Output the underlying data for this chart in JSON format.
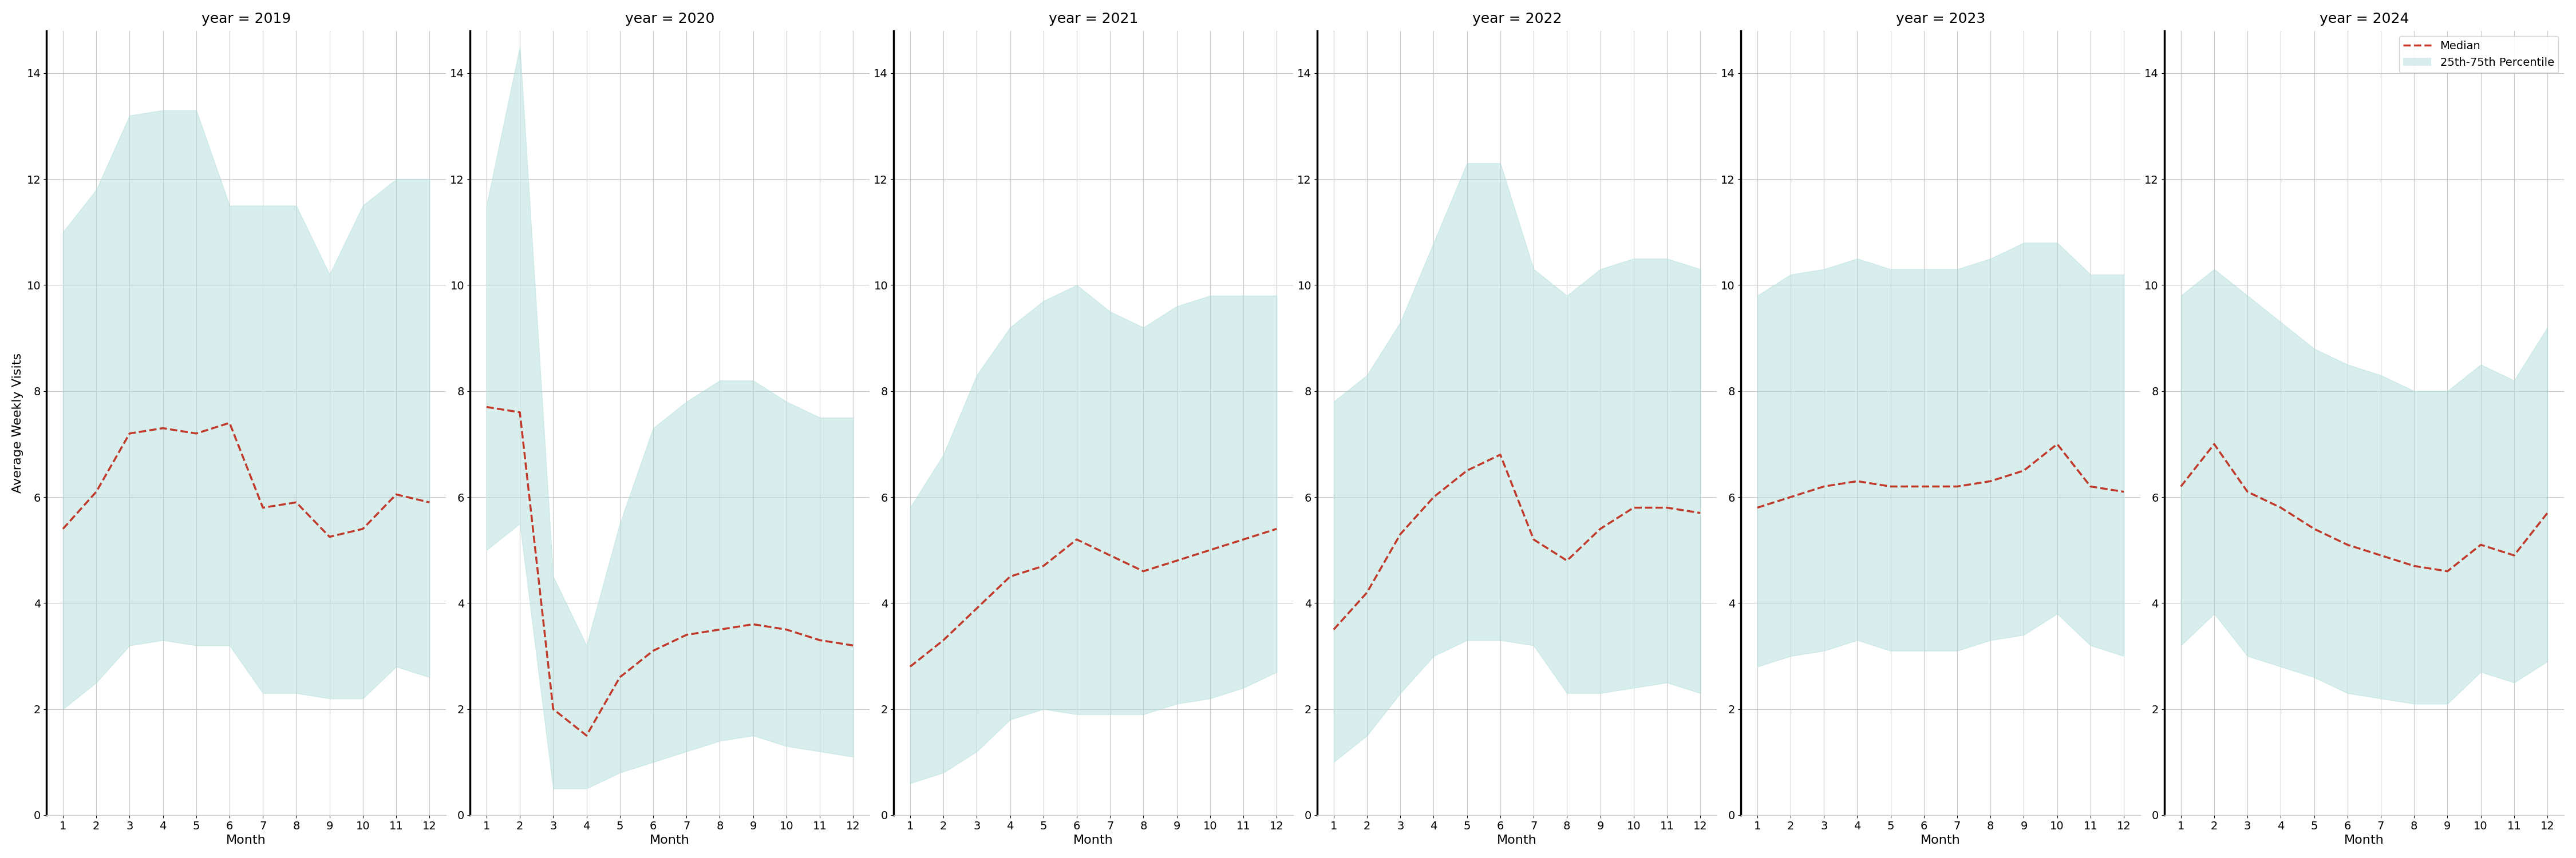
{
  "years": [
    2019,
    2020,
    2021,
    2022,
    2023,
    2024
  ],
  "months": [
    1,
    2,
    3,
    4,
    5,
    6,
    7,
    8,
    9,
    10,
    11,
    12
  ],
  "median": {
    "2019": [
      5.4,
      6.1,
      7.2,
      7.3,
      7.2,
      7.4,
      5.8,
      5.9,
      5.25,
      5.4,
      6.05,
      5.9
    ],
    "2020": [
      7.7,
      7.6,
      2.0,
      1.5,
      2.6,
      3.1,
      3.4,
      3.5,
      3.6,
      3.5,
      3.3,
      3.2
    ],
    "2021": [
      2.8,
      3.3,
      3.9,
      4.5,
      4.7,
      5.2,
      4.9,
      4.6,
      4.8,
      5.0,
      5.2,
      5.4
    ],
    "2022": [
      3.5,
      4.2,
      5.3,
      6.0,
      6.5,
      6.8,
      5.2,
      4.8,
      5.4,
      5.8,
      5.8,
      5.7
    ],
    "2023": [
      5.8,
      6.0,
      6.2,
      6.3,
      6.2,
      6.2,
      6.2,
      6.3,
      6.5,
      7.0,
      6.2,
      6.1
    ],
    "2024": [
      6.2,
      7.0,
      6.1,
      5.8,
      5.4,
      5.1,
      4.9,
      4.7,
      4.6,
      5.1,
      4.9,
      5.7
    ]
  },
  "p25": {
    "2019": [
      2.0,
      2.5,
      3.2,
      3.3,
      3.2,
      3.2,
      2.3,
      2.3,
      2.2,
      2.2,
      2.8,
      2.6
    ],
    "2020": [
      5.0,
      5.5,
      0.5,
      0.5,
      0.8,
      1.0,
      1.2,
      1.4,
      1.5,
      1.3,
      1.2,
      1.1
    ],
    "2021": [
      0.6,
      0.8,
      1.2,
      1.8,
      2.0,
      1.9,
      1.9,
      1.9,
      2.1,
      2.2,
      2.4,
      2.7
    ],
    "2022": [
      1.0,
      1.5,
      2.3,
      3.0,
      3.3,
      3.3,
      3.2,
      2.3,
      2.3,
      2.4,
      2.5,
      2.3
    ],
    "2023": [
      2.8,
      3.0,
      3.1,
      3.3,
      3.1,
      3.1,
      3.1,
      3.3,
      3.4,
      3.8,
      3.2,
      3.0
    ],
    "2024": [
      3.2,
      3.8,
      3.0,
      2.8,
      2.6,
      2.3,
      2.2,
      2.1,
      2.1,
      2.7,
      2.5,
      2.9
    ]
  },
  "p75": {
    "2019": [
      11.0,
      11.8,
      13.2,
      13.3,
      13.3,
      11.5,
      11.5,
      11.5,
      10.2,
      11.5,
      12.0,
      12.0
    ],
    "2020": [
      11.5,
      14.5,
      4.5,
      3.2,
      5.5,
      7.3,
      7.8,
      8.2,
      8.2,
      7.8,
      7.5,
      7.5
    ],
    "2021": [
      5.8,
      6.8,
      8.3,
      9.2,
      9.7,
      10.0,
      9.5,
      9.2,
      9.6,
      9.8,
      9.8,
      9.8
    ],
    "2022": [
      7.8,
      8.3,
      9.3,
      10.8,
      12.3,
      12.3,
      10.3,
      9.8,
      10.3,
      10.5,
      10.5,
      10.3
    ],
    "2023": [
      9.8,
      10.2,
      10.3,
      10.5,
      10.3,
      10.3,
      10.3,
      10.5,
      10.8,
      10.8,
      10.2,
      10.2
    ],
    "2024": [
      9.8,
      10.3,
      9.8,
      9.3,
      8.8,
      8.5,
      8.3,
      8.0,
      8.0,
      8.5,
      8.2,
      9.2
    ]
  },
  "fill_color": "#b2dfdb",
  "fill_alpha": 0.5,
  "line_color": "#c0392b",
  "line_style": "--",
  "line_width": 2.5,
  "ylabel": "Average Weekly Visits",
  "xlabel": "Month",
  "ylim": [
    0,
    14.8
  ],
  "yticks": [
    0,
    2,
    4,
    6,
    8,
    10,
    12,
    14
  ],
  "xticks": [
    1,
    2,
    3,
    4,
    5,
    6,
    7,
    8,
    9,
    10,
    11,
    12
  ],
  "title_fontsize": 18,
  "axis_fontsize": 16,
  "tick_fontsize": 14,
  "legend_fontsize": 14,
  "background_color": "#ffffff",
  "grid_color": "#c8c8c8"
}
